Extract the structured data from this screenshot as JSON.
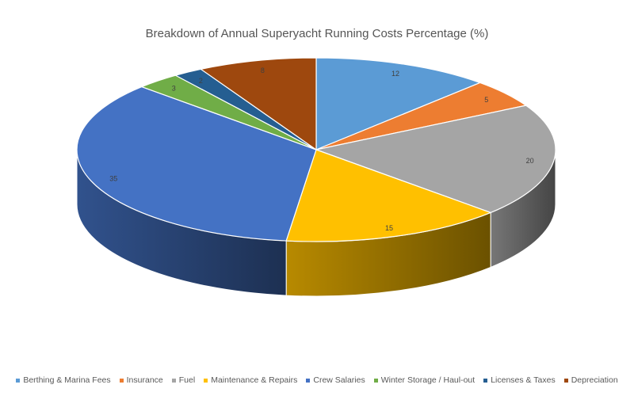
{
  "chart_data": {
    "type": "pie",
    "title": "Breakdown of Annual Superyacht Running Costs Percentage (%)",
    "categories": [
      "Berthing & Marina Fees",
      "Insurance",
      "Fuel",
      "Maintenance & Repairs",
      "Crew Salaries",
      "Winter Storage / Haul-out",
      "Licenses & Taxes",
      "Depreciation"
    ],
    "values": [
      12,
      5,
      20,
      15,
      35,
      3,
      2,
      8
    ],
    "colors": [
      "#5B9BD5",
      "#ED7D31",
      "#A5A5A5",
      "#FFC000",
      "#4472C4",
      "#70AD47",
      "#255E91",
      "#9E480E"
    ],
    "style": "3d",
    "legend_position": "bottom",
    "data_labels": true
  }
}
